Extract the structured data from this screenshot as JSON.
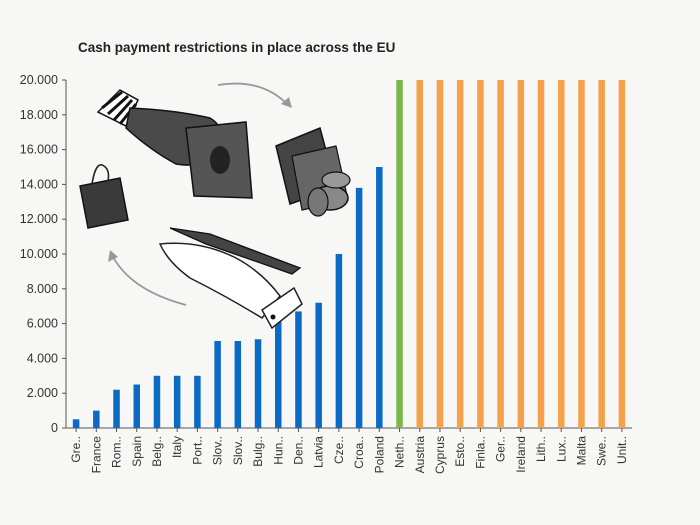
{
  "chart_data": {
    "type": "bar",
    "title": "Cash payment restrictions in place across the EU",
    "xlabel": "",
    "ylabel": "",
    "ylim": [
      0,
      20000
    ],
    "yticks": [
      0,
      2000,
      4000,
      6000,
      8000,
      10000,
      12000,
      14000,
      16000,
      18000,
      20000
    ],
    "ytick_labels": [
      "0",
      "2.000",
      "4.000",
      "6.000",
      "8.000",
      "10.000",
      "12.000",
      "14.000",
      "16.000",
      "18.000",
      "20.000"
    ],
    "categories": [
      "Gre..",
      "France",
      "Rom..",
      "Spain",
      "Belg..",
      "Italy",
      "Port..",
      "Slov..",
      "Slov..",
      "Bulg..",
      "Hun..",
      "Den..",
      "Latvia",
      "Cze..",
      "Croa..",
      "Poland",
      "Neth..",
      "Austria",
      "Cyprus",
      "Esto..",
      "Finla..",
      "Ger..",
      "Ireland",
      "Lith..",
      "Lux..",
      "Malta",
      "Swe..",
      "Unit.."
    ],
    "values": [
      500,
      1000,
      2200,
      2500,
      3000,
      3000,
      3000,
      5000,
      5000,
      5100,
      6500,
      6700,
      7200,
      10000,
      13800,
      15000,
      20000,
      20000,
      20000,
      20000,
      20000,
      20000,
      20000,
      20000,
      20000,
      20000,
      20000,
      20000
    ],
    "bar_colors": [
      "#0b6bc4",
      "#0b6bc4",
      "#0b6bc4",
      "#0b6bc4",
      "#0b6bc4",
      "#0b6bc4",
      "#0b6bc4",
      "#0b6bc4",
      "#0b6bc4",
      "#0b6bc4",
      "#0b6bc4",
      "#0b6bc4",
      "#0b6bc4",
      "#0b6bc4",
      "#0b6bc4",
      "#0b6bc4",
      "#7ab648",
      "#f5a04b",
      "#f5a04b",
      "#f5a04b",
      "#f5a04b",
      "#f5a04b",
      "#f5a04b",
      "#f5a04b",
      "#f5a04b",
      "#f5a04b",
      "#f5a04b",
      "#f5a04b"
    ],
    "grid": false,
    "legend": "none"
  },
  "illustration": {
    "icons": [
      "shopping-bag-icon",
      "hand-giving-banknote-icon",
      "hand-receiving-banknote-icon",
      "cash-and-coins-icon",
      "cycle-arrow-icon"
    ]
  }
}
